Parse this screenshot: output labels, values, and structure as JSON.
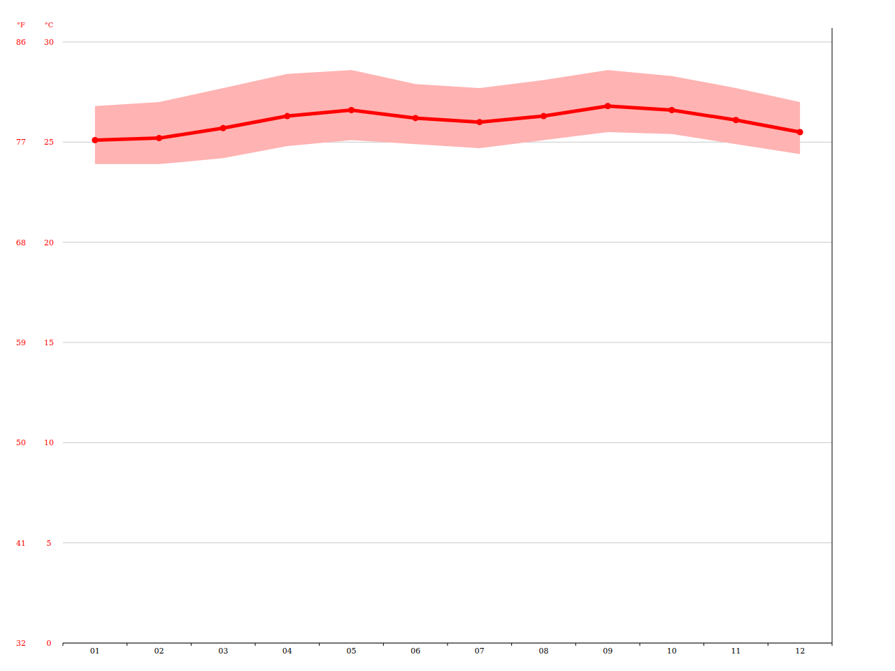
{
  "chart_data": {
    "type": "line",
    "y_label": "°C",
    "y2_label": "°F",
    "categories": [
      "01",
      "02",
      "03",
      "04",
      "05",
      "06",
      "07",
      "08",
      "09",
      "10",
      "11",
      "12"
    ],
    "series": [
      {
        "type": "range",
        "color": "#ffb3b3",
        "values": [
          26.8,
          27.0,
          27.7,
          28.4,
          28.6,
          27.9,
          27.7,
          28.1,
          28.6,
          28.3,
          27.7,
          27.0
        ],
        "low": [
          23.9,
          23.9,
          24.2,
          24.8,
          25.1,
          24.9,
          24.7,
          25.1,
          25.5,
          25.4,
          24.9,
          24.4
        ]
      },
      {
        "type": "line",
        "color": "#ff0000",
        "marker": "circle",
        "values": [
          25.1,
          25.2,
          25.7,
          26.3,
          26.6,
          26.2,
          26.0,
          26.3,
          26.8,
          26.6,
          26.1,
          25.5
        ]
      }
    ],
    "ylim": [
      0,
      30
    ],
    "yticks": [
      0,
      5,
      10,
      15,
      20,
      25,
      30
    ],
    "y2lim": [
      32,
      86
    ],
    "y2ticks": [
      32,
      41,
      50,
      59,
      68,
      77,
      86
    ],
    "grid": true
  }
}
